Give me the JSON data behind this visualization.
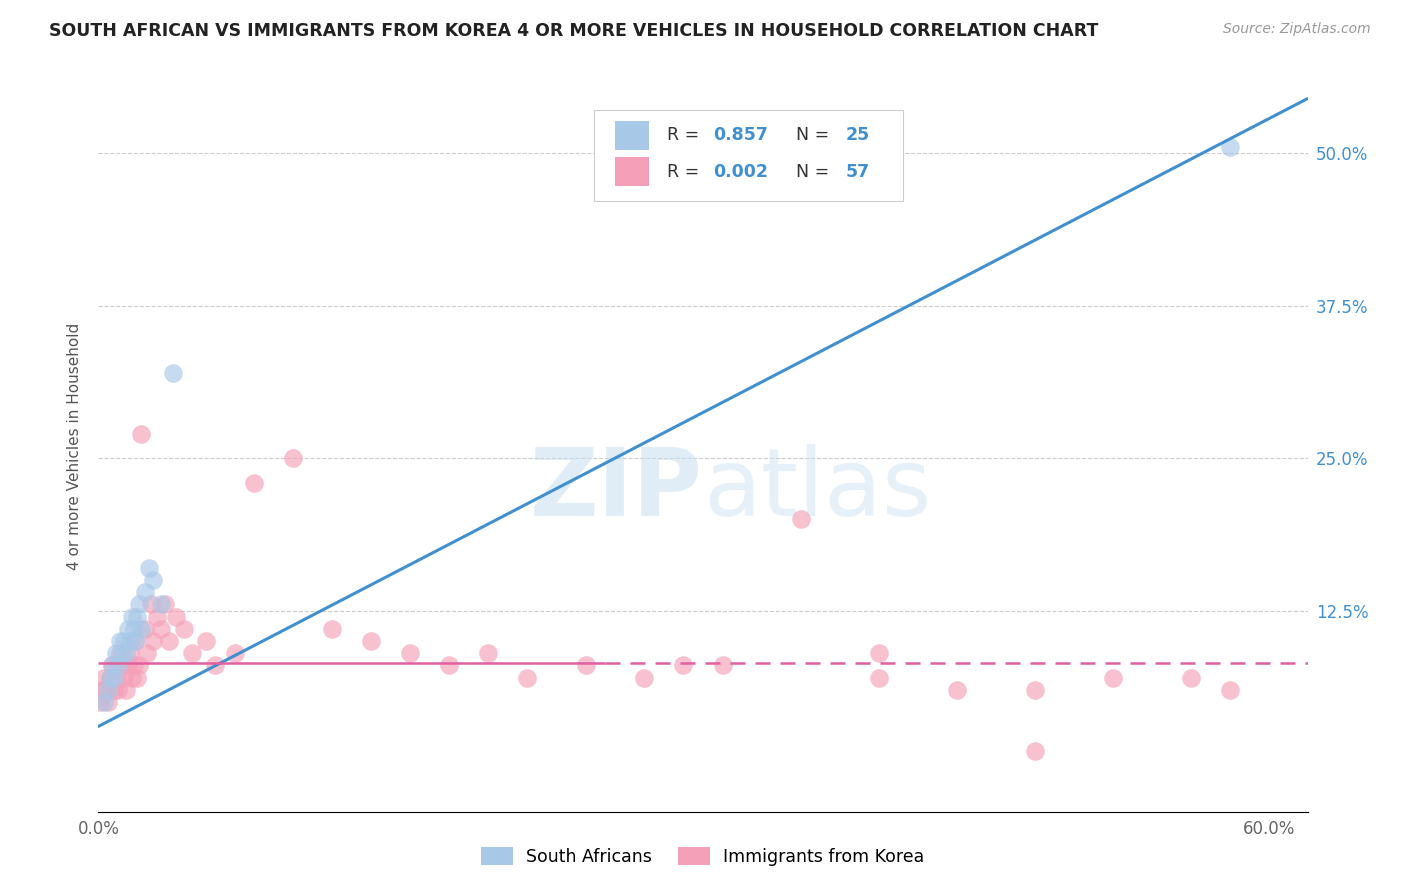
{
  "title": "SOUTH AFRICAN VS IMMIGRANTS FROM KOREA 4 OR MORE VEHICLES IN HOUSEHOLD CORRELATION CHART",
  "source": "Source: ZipAtlas.com",
  "ylabel": "4 or more Vehicles in Household",
  "xlim": [
    0.0,
    0.62
  ],
  "ylim": [
    -0.04,
    0.56
  ],
  "watermark_zip": "ZIP",
  "watermark_atlas": "atlas",
  "legend_r1": "0.857",
  "legend_n1": "25",
  "legend_r2": "0.002",
  "legend_n2": "57",
  "color_blue": "#a8c8e8",
  "color_pink": "#f4a0b8",
  "color_line_blue": "#4090d0",
  "color_line_pink": "#e060a0",
  "color_text_blue": "#4090d0",
  "color_text_black": "#333333",
  "label_south_africans": "South Africans",
  "label_korea": "Immigrants from Korea",
  "sa_x": [
    0.003,
    0.005,
    0.006,
    0.007,
    0.008,
    0.009,
    0.01,
    0.011,
    0.012,
    0.013,
    0.014,
    0.015,
    0.016,
    0.017,
    0.018,
    0.019,
    0.02,
    0.021,
    0.022,
    0.024,
    0.026,
    0.028,
    0.032,
    0.038,
    0.58
  ],
  "sa_y": [
    0.05,
    0.06,
    0.07,
    0.08,
    0.07,
    0.09,
    0.08,
    0.1,
    0.09,
    0.1,
    0.09,
    0.11,
    0.1,
    0.12,
    0.11,
    0.1,
    0.12,
    0.13,
    0.11,
    0.14,
    0.16,
    0.15,
    0.13,
    0.32,
    0.505
  ],
  "korea_x": [
    0.001,
    0.002,
    0.003,
    0.004,
    0.005,
    0.006,
    0.007,
    0.008,
    0.009,
    0.01,
    0.011,
    0.012,
    0.013,
    0.014,
    0.015,
    0.016,
    0.017,
    0.018,
    0.019,
    0.02,
    0.021,
    0.022,
    0.024,
    0.025,
    0.027,
    0.028,
    0.03,
    0.032,
    0.034,
    0.036,
    0.04,
    0.044,
    0.048,
    0.055,
    0.06,
    0.07,
    0.08,
    0.1,
    0.12,
    0.14,
    0.16,
    0.18,
    0.2,
    0.22,
    0.25,
    0.28,
    0.32,
    0.36,
    0.4,
    0.44,
    0.48,
    0.52,
    0.56,
    0.58,
    0.4,
    0.48,
    0.3
  ],
  "korea_y": [
    0.05,
    0.06,
    0.07,
    0.06,
    0.05,
    0.07,
    0.08,
    0.06,
    0.07,
    0.06,
    0.09,
    0.08,
    0.07,
    0.06,
    0.08,
    0.09,
    0.07,
    0.08,
    0.1,
    0.07,
    0.08,
    0.27,
    0.11,
    0.09,
    0.13,
    0.1,
    0.12,
    0.11,
    0.13,
    0.1,
    0.12,
    0.11,
    0.09,
    0.1,
    0.08,
    0.09,
    0.23,
    0.25,
    0.11,
    0.1,
    0.09,
    0.08,
    0.09,
    0.07,
    0.08,
    0.07,
    0.08,
    0.2,
    0.07,
    0.06,
    0.06,
    0.07,
    0.07,
    0.06,
    0.09,
    0.01,
    0.08
  ]
}
